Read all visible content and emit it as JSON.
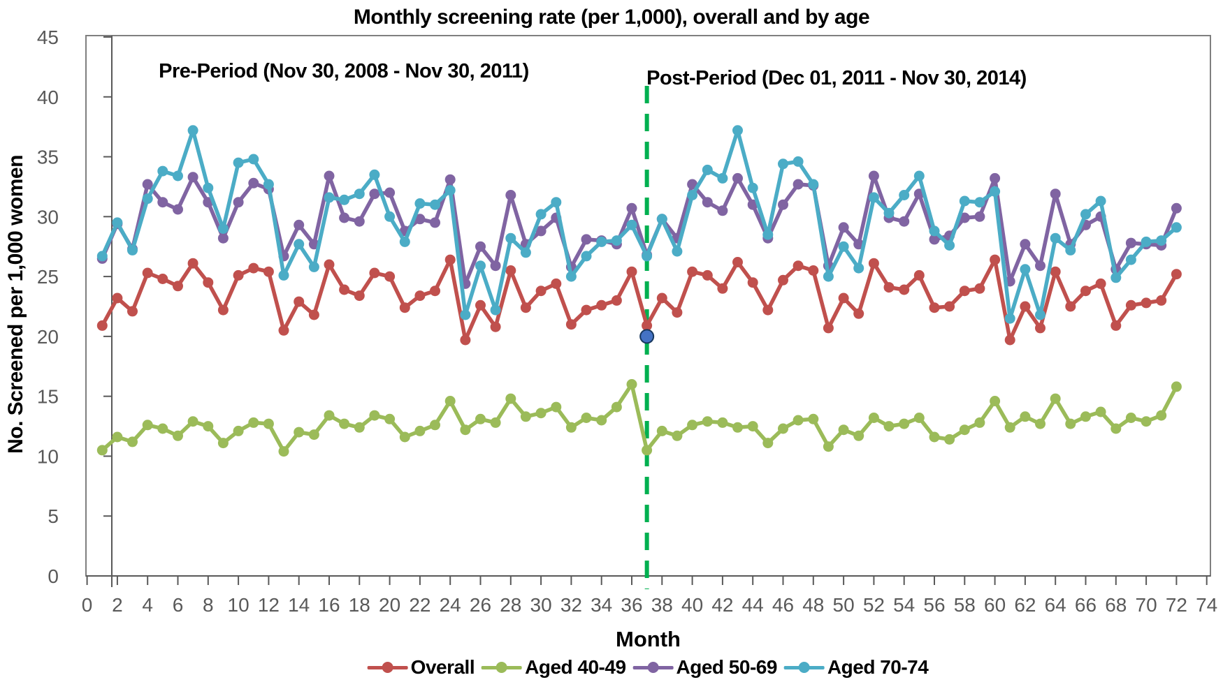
{
  "page": {
    "title": "Monthly screening rate (per 1,000), overall and by age"
  },
  "annotations": {
    "pre_period": "Pre-Period (Nov 30, 2008 - Nov 30, 2011)",
    "post_period": "Post-Period (Dec 01, 2011 - Nov 30, 2014)"
  },
  "axes": {
    "y_title": "No. Screened per 1,000 women",
    "x_title": "Month",
    "y_ticks": [
      0,
      5,
      10,
      15,
      20,
      25,
      30,
      35,
      40,
      45
    ],
    "x_ticks": [
      0,
      2,
      4,
      6,
      8,
      10,
      12,
      14,
      16,
      18,
      20,
      22,
      24,
      26,
      28,
      30,
      32,
      34,
      36,
      38,
      40,
      42,
      44,
      46,
      48,
      50,
      52,
      54,
      56,
      58,
      60,
      62,
      64,
      66,
      68,
      70,
      72,
      74
    ]
  },
  "colors": {
    "overall": "#C0504D",
    "aged_40_49": "#9BBB59",
    "aged_50_69": "#8064A2",
    "aged_70_74": "#4BACC6",
    "interruption_line": "#00B050",
    "isolated_point": "#4472C4",
    "axis_gray": "#595959",
    "border_gray": "#7F7F7F",
    "tick_label_gray": "#595959"
  },
  "legend": [
    {
      "label": "Overall",
      "color": "#C0504D",
      "name": "legend-item-overall"
    },
    {
      "label": "Aged 40-49",
      "color": "#9BBB59",
      "name": "legend-item-aged-40-49"
    },
    {
      "label": "Aged 50-69",
      "color": "#8064A2",
      "name": "legend-item-aged-50-69"
    },
    {
      "label": "Aged 70-74",
      "color": "#4BACC6",
      "name": "legend-item-aged-70-74"
    }
  ],
  "chart_data": {
    "type": "line",
    "title": "Monthly screening rate (per 1,000), overall and by age",
    "xlabel": "Month",
    "ylabel": "No. Screened per 1,000 women",
    "xlim": [
      0,
      74
    ],
    "ylim": [
      0,
      45
    ],
    "grid": false,
    "legend_position": "bottom",
    "x_start_month": 1,
    "interruption_month": 37,
    "special_point": {
      "month": 37,
      "value": 20.0,
      "color": "#4472C4"
    },
    "series": [
      {
        "name": "Overall",
        "color": "#C0504D",
        "values": [
          20.9,
          23.2,
          22.1,
          25.3,
          24.8,
          24.2,
          26.1,
          24.5,
          22.2,
          25.1,
          25.7,
          25.4,
          20.5,
          22.9,
          21.8,
          26.0,
          23.9,
          23.4,
          25.3,
          25.0,
          22.4,
          23.4,
          23.8,
          26.4,
          19.7,
          22.6,
          20.8,
          25.5,
          22.4,
          23.8,
          24.4,
          21.0,
          22.2,
          22.6,
          23.0,
          25.4,
          20.9,
          23.2,
          22.0,
          25.4,
          25.1,
          24.0,
          26.2,
          24.5,
          22.2,
          24.7,
          25.9,
          25.5,
          20.7,
          23.2,
          21.9,
          26.1,
          24.1,
          23.9,
          25.1,
          22.4,
          22.5,
          23.8,
          24.0,
          26.4,
          19.7,
          22.5,
          20.7,
          25.4,
          22.5,
          23.8,
          24.4,
          20.9,
          22.6,
          22.8,
          23.0,
          25.2
        ]
      },
      {
        "name": "Aged 40-49",
        "color": "#9BBB59",
        "values": [
          10.5,
          11.6,
          11.2,
          12.6,
          12.3,
          11.7,
          12.9,
          12.5,
          11.1,
          12.1,
          12.8,
          12.7,
          10.4,
          12.0,
          11.8,
          13.4,
          12.7,
          12.4,
          13.4,
          13.1,
          11.6,
          12.1,
          12.6,
          14.6,
          12.2,
          13.1,
          12.8,
          14.8,
          13.3,
          13.6,
          14.1,
          12.4,
          13.2,
          13.0,
          14.1,
          16.0,
          10.5,
          12.1,
          11.7,
          12.6,
          12.9,
          12.8,
          12.4,
          12.5,
          11.1,
          12.3,
          13.0,
          13.1,
          10.8,
          12.2,
          11.7,
          13.2,
          12.5,
          12.7,
          13.2,
          11.6,
          11.4,
          12.2,
          12.8,
          14.6,
          12.4,
          13.3,
          12.7,
          14.8,
          12.7,
          13.3,
          13.7,
          12.3,
          13.2,
          12.9,
          13.4,
          15.8
        ]
      },
      {
        "name": "Aged 50-69",
        "color": "#8064A2",
        "values": [
          26.5,
          29.4,
          27.3,
          32.7,
          31.2,
          30.6,
          33.3,
          31.2,
          28.2,
          31.2,
          32.8,
          32.3,
          26.7,
          29.3,
          27.7,
          33.4,
          29.9,
          29.6,
          31.9,
          32.0,
          28.8,
          29.8,
          29.5,
          33.1,
          24.4,
          27.5,
          25.9,
          31.8,
          27.7,
          28.8,
          29.9,
          25.8,
          28.1,
          28.0,
          27.7,
          30.7,
          26.8,
          29.8,
          28.2,
          32.7,
          31.2,
          30.5,
          33.2,
          31.0,
          28.2,
          31.0,
          32.7,
          32.6,
          25.9,
          29.1,
          27.7,
          33.4,
          29.9,
          29.6,
          31.9,
          28.1,
          28.4,
          29.9,
          30.0,
          33.2,
          24.6,
          27.7,
          25.9,
          31.9,
          27.7,
          29.3,
          30.0,
          25.6,
          27.8,
          27.7,
          27.6,
          30.7
        ]
      },
      {
        "name": "Aged 70-74",
        "color": "#4BACC6",
        "values": [
          26.7,
          29.5,
          27.2,
          31.5,
          33.8,
          33.4,
          37.2,
          32.4,
          29.0,
          34.5,
          34.8,
          32.7,
          25.1,
          27.7,
          25.8,
          31.6,
          31.4,
          31.9,
          33.5,
          30.0,
          27.9,
          31.1,
          31.0,
          32.2,
          21.8,
          25.9,
          22.2,
          28.2,
          27.0,
          30.2,
          31.2,
          25.0,
          26.7,
          27.9,
          28.0,
          29.3,
          26.7,
          29.8,
          27.1,
          31.8,
          33.9,
          33.2,
          37.2,
          32.4,
          28.5,
          34.4,
          34.6,
          32.7,
          25.0,
          27.5,
          25.7,
          31.6,
          30.3,
          31.8,
          33.4,
          28.8,
          27.6,
          31.3,
          31.2,
          32.1,
          21.5,
          25.6,
          21.8,
          28.2,
          27.2,
          30.2,
          31.3,
          24.9,
          26.4,
          27.9,
          28.0,
          29.1
        ]
      }
    ]
  }
}
